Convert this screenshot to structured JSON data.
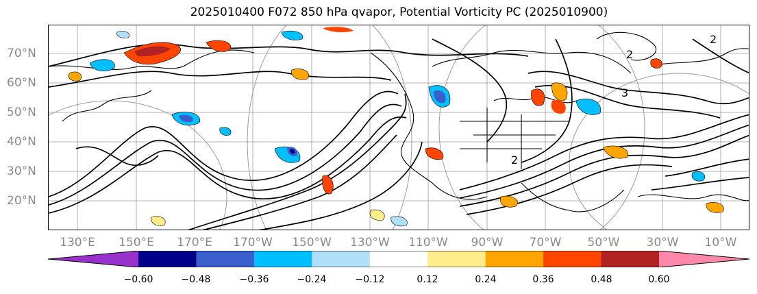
{
  "title": "2025010400 F072 850 hPa qvapor, Potential Vorticity PC (2025010900)",
  "map": {
    "lat_labels": [
      "70°N",
      "60°N",
      "50°N",
      "40°N",
      "30°N",
      "20°N"
    ],
    "lon_labels": [
      "130°E",
      "150°E",
      "170°E",
      "170°W",
      "150°W",
      "130°W",
      "110°W",
      "90°W",
      "70°W",
      "50°W",
      "30°W",
      "10°W"
    ],
    "lat_range": [
      10,
      80
    ],
    "lon_range_deg_east": [
      120,
      360
    ],
    "contour_labels": [
      "2",
      "3",
      "2",
      "2"
    ]
  },
  "colorbar": {
    "ticks": [
      "−0.60",
      "−0.48",
      "−0.36",
      "−0.24",
      "−0.12",
      "0.12",
      "0.24",
      "0.36",
      "0.48",
      "0.60"
    ],
    "colors": [
      "#9932cc",
      "#00008b",
      "#3a5fcd",
      "#00bfff",
      "#b0e0f8",
      "#ffffff",
      "#ffec8b",
      "#ffa500",
      "#ff4500",
      "#b22222",
      "#ff88aa"
    ],
    "extend": "both"
  }
}
